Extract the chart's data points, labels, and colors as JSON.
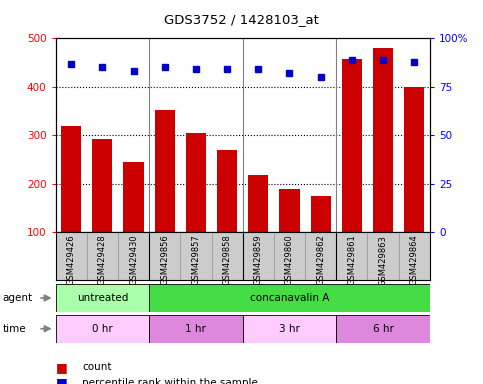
{
  "title": "GDS3752 / 1428103_at",
  "samples": [
    "GSM429426",
    "GSM429428",
    "GSM429430",
    "GSM429856",
    "GSM429857",
    "GSM429858",
    "GSM429859",
    "GSM429860",
    "GSM429862",
    "GSM429861",
    "GSM429863",
    "GSM429864"
  ],
  "counts": [
    320,
    293,
    245,
    352,
    305,
    270,
    218,
    190,
    175,
    458,
    480,
    400
  ],
  "percentile_ranks": [
    87,
    85,
    83,
    85,
    84,
    84,
    84,
    82,
    80,
    89,
    89,
    88
  ],
  "bar_color": "#cc0000",
  "dot_color": "#0000cc",
  "ymin": 100,
  "ymax": 500,
  "y_ticks": [
    100,
    200,
    300,
    400,
    500
  ],
  "y2min": 0,
  "y2max": 100,
  "y2_ticks": [
    0,
    25,
    50,
    75,
    100
  ],
  "group_boundaries": [
    2.5,
    5.5,
    8.5
  ],
  "agent_labels": [
    {
      "text": "untreated",
      "start": 0,
      "end": 3,
      "color": "#aaffaa"
    },
    {
      "text": "concanavalin A",
      "start": 3,
      "end": 12,
      "color": "#44dd44"
    }
  ],
  "time_labels": [
    {
      "text": "0 hr",
      "start": 0,
      "end": 3,
      "color": "#ffccff"
    },
    {
      "text": "1 hr",
      "start": 3,
      "end": 6,
      "color": "#dd88dd"
    },
    {
      "text": "3 hr",
      "start": 6,
      "end": 9,
      "color": "#ffccff"
    },
    {
      "text": "6 hr",
      "start": 9,
      "end": 12,
      "color": "#dd88dd"
    }
  ],
  "legend_count_color": "#cc0000",
  "legend_dot_color": "#0000cc",
  "background_color": "#ffffff",
  "sample_bg_color": "#cccccc",
  "grid_color": "#000000"
}
